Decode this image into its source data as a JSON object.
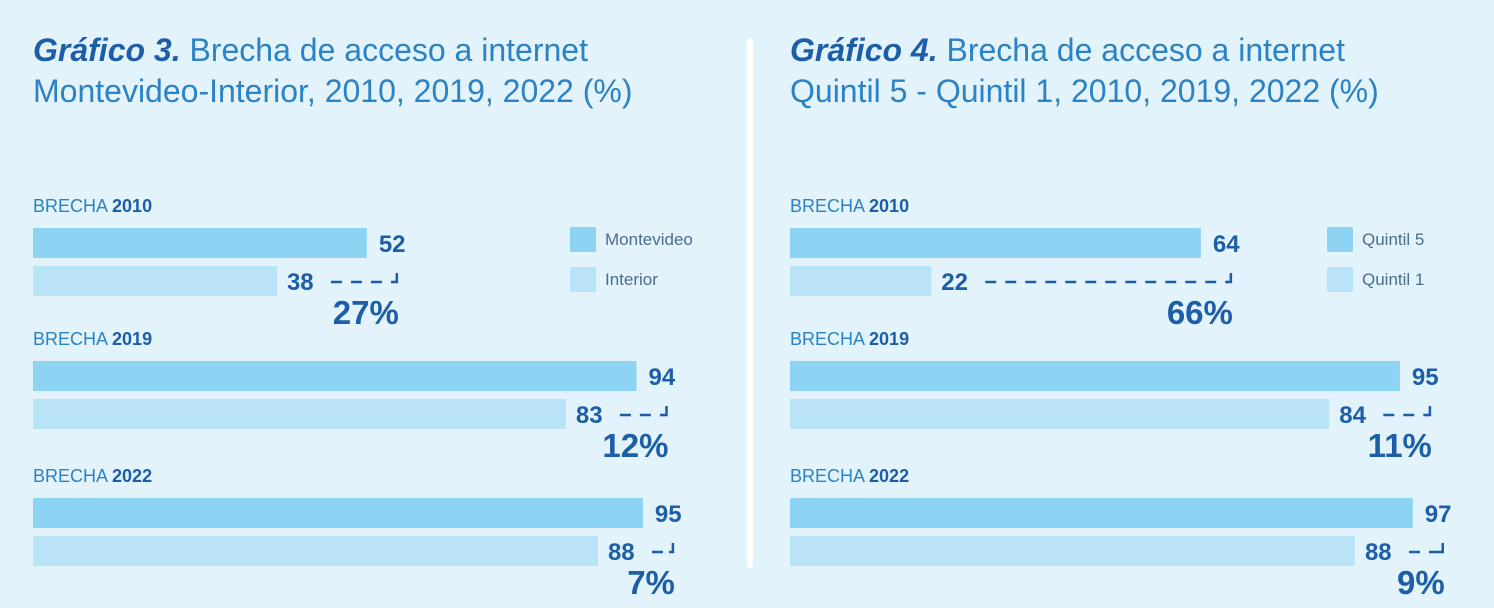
{
  "colors": {
    "background": "#e3f3fb",
    "series_primary": "#8dd3f3",
    "series_secondary": "#b9e4f7",
    "value_text": "#1d5ea8",
    "title_text": "#2b82c4"
  },
  "chart_data": [
    {
      "type": "bar",
      "title": "Gráfico 3. Brecha de acceso a internet Montevideo-Interior, 2010, 2019, 2022 (%)",
      "title_lead": "Gráfico 3.",
      "title_rest_line1": "Brecha de acceso a internet",
      "title_line2": "Montevideo-Interior, 2010, 2019, 2022 (%)",
      "group_prefix": "BRECHA",
      "categories": [
        "2010",
        "2019",
        "2022"
      ],
      "series": [
        {
          "name": "Montevideo",
          "values": [
            52,
            94,
            95
          ]
        },
        {
          "name": "Interior",
          "values": [
            38,
            83,
            88
          ]
        }
      ],
      "gap_labels": [
        "27%",
        "12%",
        "7%"
      ],
      "value_labels": [
        [
          "52",
          "38"
        ],
        [
          "94",
          "83"
        ],
        [
          "95",
          "88"
        ]
      ],
      "legend": [
        "Montevideo",
        "Interior"
      ],
      "legend_position": "top-right",
      "xlim": [
        0,
        100
      ],
      "grid": false
    },
    {
      "type": "bar",
      "title": "Gráfico 4. Brecha de acceso a internet Quintil 5 - Quintil 1, 2010, 2019, 2022 (%)",
      "title_lead": "Gráfico 4.",
      "title_rest_line1": "Brecha de acceso a internet",
      "title_line2": "Quintil 5 - Quintil 1, 2010, 2019, 2022 (%)",
      "group_prefix": "BRECHA",
      "categories": [
        "2010",
        "2019",
        "2022"
      ],
      "series": [
        {
          "name": "Quintil 5",
          "values": [
            64,
            95,
            97
          ]
        },
        {
          "name": "Quintil 1",
          "values": [
            22,
            84,
            88
          ]
        }
      ],
      "gap_labels": [
        "66%",
        "11%",
        "9%"
      ],
      "value_labels": [
        [
          "64",
          "22"
        ],
        [
          "95",
          "84"
        ],
        [
          "97",
          "88"
        ]
      ],
      "legend": [
        "Quintil 5",
        "Quintil 1"
      ],
      "legend_position": "top-right",
      "xlim": [
        0,
        100
      ],
      "grid": false
    }
  ]
}
